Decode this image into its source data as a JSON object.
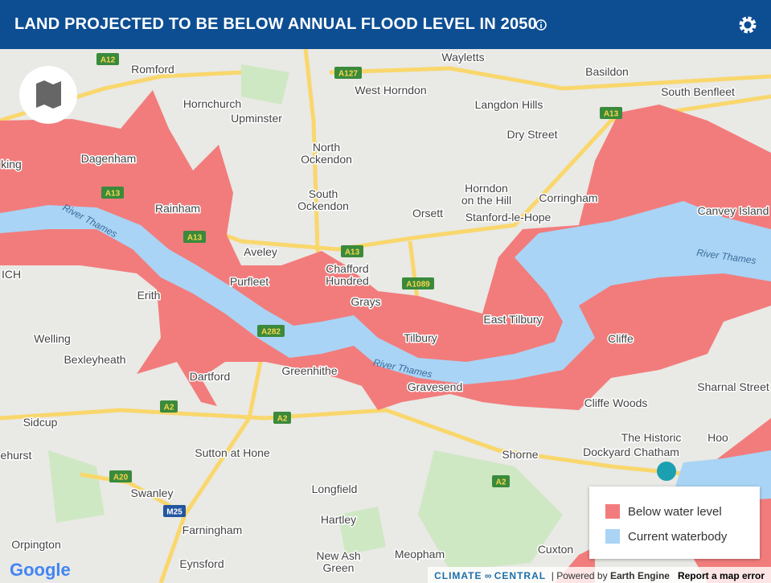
{
  "header": {
    "title": "LAND PROJECTED TO BE BELOW ANNUAL FLOOD LEVEL IN 2050"
  },
  "legend": {
    "items": [
      "Below water level",
      "Current waterbody"
    ]
  },
  "map": {
    "places": [
      "Romford",
      "Wayletts",
      "Basildon",
      "Hornchurch",
      "West Horndon",
      "Langdon Hills",
      "South Benfleet",
      "Upminster",
      "Dry Street",
      "Dagenham",
      "North",
      "Ockendon",
      "South",
      "Ockendon",
      "Horndon",
      "on the Hill",
      "Corringham",
      "Canvey Island",
      "Rainham",
      "Orsett",
      "Stanford-le-Hope",
      "Aveley",
      "Chafford",
      "Hundred",
      "Purfleet",
      "Erith",
      "Grays",
      "East Tilbury",
      "Welling",
      "Tilbury",
      "Cliffe",
      "Bexleyheath",
      "Greenhithe",
      "Dartford",
      "Gravesend",
      "Sharnal Street",
      "Cliffe Woods",
      "Sidcup",
      "The Historic",
      "Dockyard Chatham",
      "Hoo",
      "ehurst",
      "Sutton at Hone",
      "Shorne",
      "Swanley",
      "Longfield",
      "Farningham",
      "Hartley",
      "Orpington",
      "Eynsford",
      "New Ash",
      "Green",
      "Meopham",
      "Cuxton",
      "king",
      "ICH"
    ],
    "rivers": [
      "River Thames",
      "River Thames",
      "River Thames"
    ],
    "roads": [
      "A12",
      "A127",
      "A13",
      "A13",
      "A13",
      "A13",
      "A1089",
      "A282",
      "A2",
      "A2",
      "A2",
      "A20",
      "M25"
    ]
  },
  "footer": {
    "logo": "Google",
    "brand": "CLIMATE",
    "brand2": "CENTRAL",
    "powered": "Powered by",
    "engine": "Earth Engine",
    "report": "Report a map error"
  }
}
